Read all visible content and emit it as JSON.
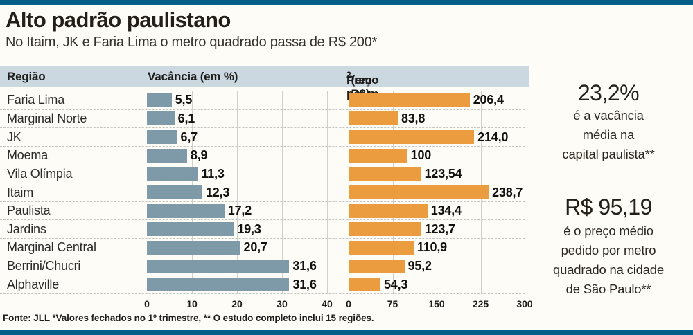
{
  "header": {
    "title": "Alto padrão paulistano",
    "subtitle": "No Itaim, JK e Faria Lima o metro quadrado passa de R$ 200*"
  },
  "table_headers": {
    "region": "Região",
    "vacancy": "Vacância (em %)",
    "price_base": "Preço por m",
    "price_exp": "2",
    "price_unit": " (em R$)"
  },
  "chart_data": {
    "type": "bar",
    "orientation": "horizontal",
    "categories": [
      "Faria Lima",
      "Marginal Norte",
      "JK",
      "Moema",
      "Vila Olímpia",
      "Itaim",
      "Paulista",
      "Jardins",
      "Marginal Central",
      "Berrini/Chucri",
      "Alphaville"
    ],
    "series": [
      {
        "name": "Vacância (em %)",
        "values": [
          5.5,
          6.1,
          6.7,
          8.9,
          11.3,
          12.3,
          17.2,
          19.3,
          20.7,
          31.6,
          31.6
        ],
        "labels": [
          "5,5",
          "6,1",
          "6,7",
          "8,9",
          "11,3",
          "12,3",
          "17,2",
          "19,3",
          "20,7",
          "31,6",
          "31,6"
        ],
        "axis": {
          "min": 0,
          "max": 40,
          "ticks": [
            "0",
            "10",
            "20",
            "30",
            "40"
          ]
        },
        "color": "#7e99a7"
      },
      {
        "name": "Preço por m2 (em R$)",
        "values": [
          206.4,
          83.8,
          214.0,
          100,
          123.54,
          238.7,
          134.4,
          123.7,
          110.9,
          95.2,
          54.3
        ],
        "labels": [
          "206,4",
          "83,8",
          "214,0",
          "100",
          "123,54",
          "238,7",
          "134,4",
          "123,7",
          "110,9",
          "95,2",
          "54,3"
        ],
        "axis": {
          "min": 0,
          "max": 300,
          "ticks": [
            "0",
            "75",
            "150",
            "225",
            "300"
          ]
        },
        "color": "#ea9c3e"
      }
    ],
    "grid": {
      "row_separators": "dashed",
      "vertical_tick_lines": "solid"
    },
    "legend": "none"
  },
  "callouts": [
    {
      "value": "23,2%",
      "lines": [
        "é a vacância",
        "média na",
        "capital paulista**"
      ]
    },
    {
      "value": "R$ 95,19",
      "lines": [
        "é o preço médio",
        "pedido por metro",
        "quadrado na cidade",
        "de São Paulo**"
      ]
    }
  ],
  "footer": {
    "source": "Fonte: JLL *Valores fechados no 1º trimestre, ** O estudo completo inclui 15 regiões."
  },
  "colors": {
    "accent_bar": "#04608a",
    "header_band": "#ccd8e0",
    "vacancy_bar": "#7e99a7",
    "price_bar": "#ea9c3e",
    "title_text": "#241e19"
  }
}
